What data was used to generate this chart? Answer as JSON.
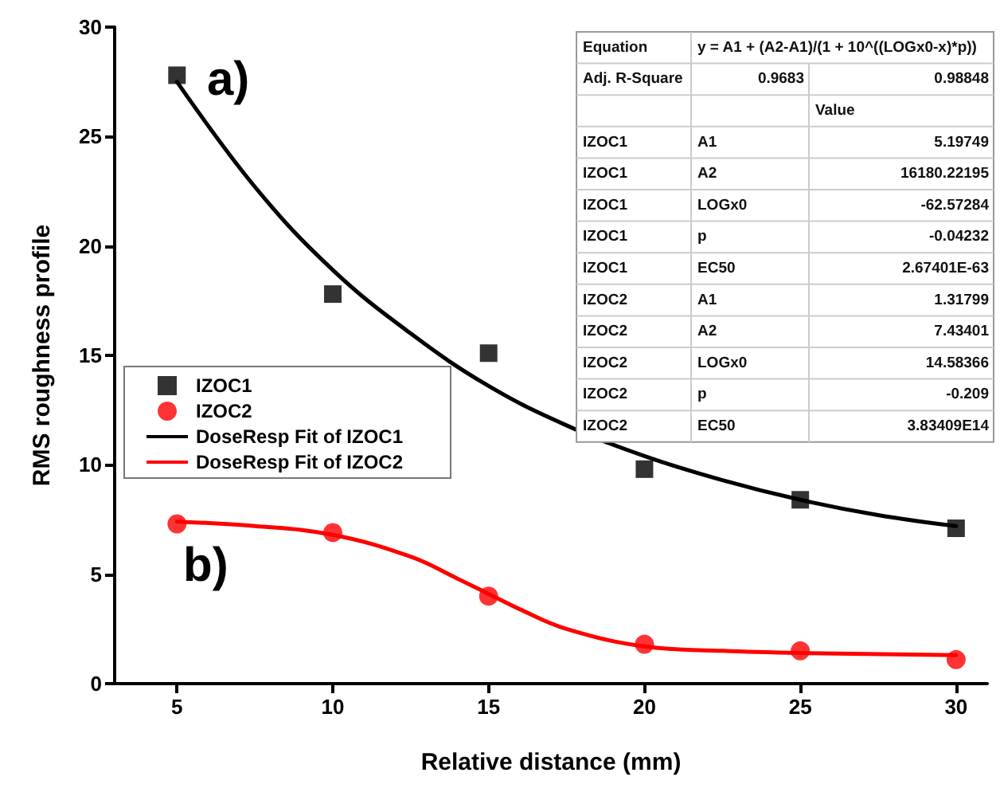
{
  "chart_data": {
    "type": "scatter",
    "xlabel": "Relative distance (mm)",
    "ylabel": "RMS roughness profile",
    "xlim": [
      3,
      31
    ],
    "xticks": [
      5,
      10,
      15,
      20,
      25,
      30
    ],
    "ylim": [
      0,
      30
    ],
    "yticks": [
      0,
      5,
      10,
      15,
      20,
      25,
      30
    ],
    "grid": false,
    "legend": "left",
    "series": [
      {
        "name": "IZOC1",
        "marker": "square",
        "color": "#000000",
        "x": [
          5,
          10,
          15,
          20,
          25,
          30
        ],
        "values": [
          27.8,
          17.8,
          15.1,
          9.8,
          8.4,
          7.1
        ]
      },
      {
        "name": "IZOC2",
        "marker": "circle",
        "color": "#ff0000",
        "x": [
          5,
          10,
          15,
          20,
          25,
          30
        ],
        "values": [
          7.3,
          6.9,
          4.0,
          1.8,
          1.5,
          1.1
        ]
      },
      {
        "name": "DoseResp Fit of IZOC1",
        "type": "line",
        "marker": "none",
        "color": "#000000",
        "x": [
          5,
          7.5,
          10,
          12.5,
          15,
          17.5,
          20,
          22.5,
          25,
          27.5,
          30
        ],
        "values": [
          27.5,
          22.7,
          18.9,
          16.0,
          13.6,
          11.8,
          10.4,
          9.3,
          8.4,
          7.7,
          7.2
        ]
      },
      {
        "name": "DoseResp Fit of IZOC2",
        "type": "line",
        "marker": "none",
        "color": "#ff0000",
        "x": [
          5,
          7.5,
          10,
          12.5,
          14,
          15,
          16,
          17.5,
          20,
          22.5,
          25,
          30
        ],
        "values": [
          7.4,
          7.2,
          6.8,
          5.8,
          4.8,
          4.1,
          3.4,
          2.5,
          1.7,
          1.5,
          1.4,
          1.3
        ]
      }
    ],
    "annotations": [
      "a)",
      "b)",
      "Equation",
      "y = A1 + (A2-A1)/(1 + 10^((LOGx0-x)*p))",
      "Adj. R-Square",
      "0.9683",
      "0.98848",
      "Value",
      "IZOC1",
      "A1",
      "5.19749",
      "IZOC1",
      "A2",
      "16180.22195",
      "IZOC1",
      "LOGx0",
      "-62.57284",
      "IZOC1",
      "p",
      "-0.04232",
      "IZOC1",
      "EC50",
      "2.67401E-63",
      "IZOC2",
      "A1",
      "1.31799",
      "IZOC2",
      "A2",
      "7.43401",
      "IZOC2",
      "LOGx0",
      "14.58366",
      "IZOC2",
      "p",
      "-0.209",
      "IZOC2",
      "EC50",
      "3.83409E14"
    ]
  }
}
